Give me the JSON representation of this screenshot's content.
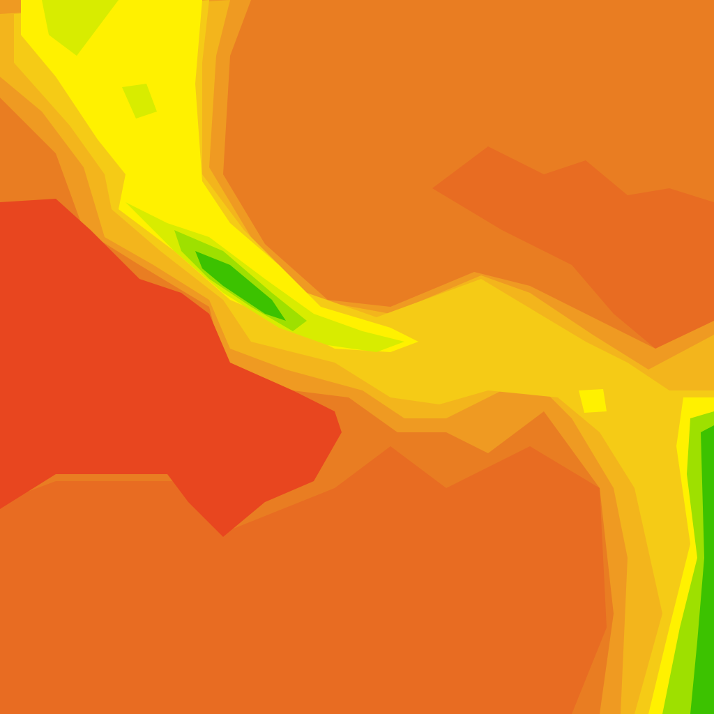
{
  "map": {
    "type": "color-contour-tile",
    "palette": {
      "base_orange": "#e97d22",
      "dark_orange": "#e86c22",
      "red": "#e8461f",
      "light_orange": "#ef9a22",
      "amber": "#f3b51c",
      "gold": "#f5cb16",
      "yellow": "#fff100",
      "yellow_green": "#d8ec00",
      "lime": "#9ee000",
      "green": "#3cc200"
    }
  }
}
